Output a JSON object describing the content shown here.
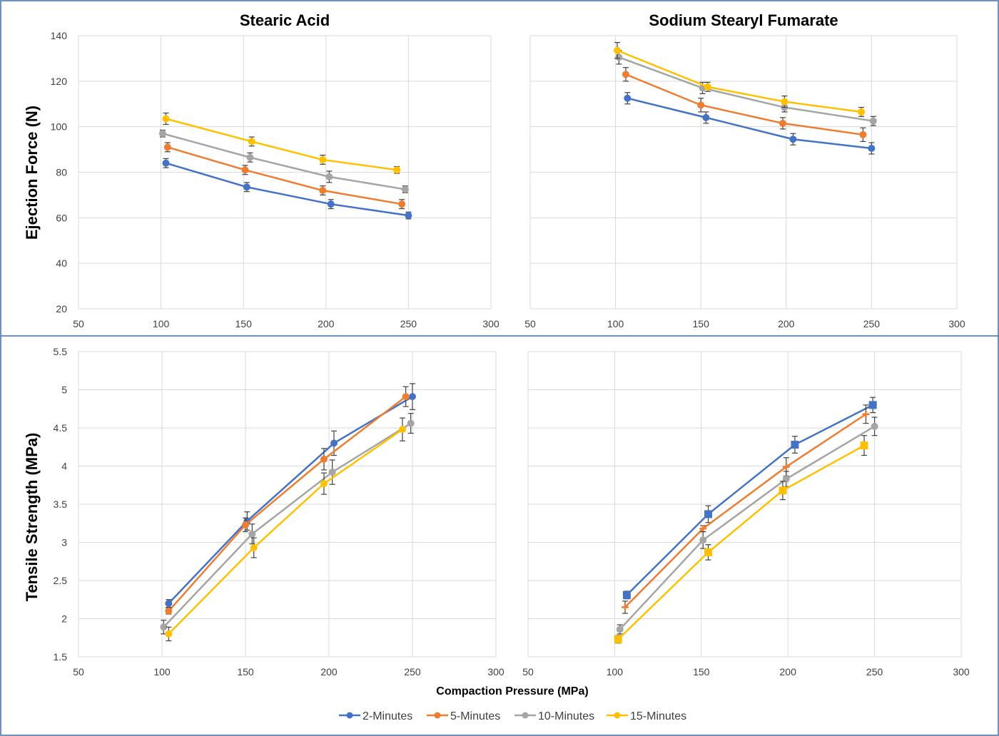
{
  "figure": {
    "y_label_top": "Ejection Force (N)",
    "y_label_bottom": "Tensile Strength (MPa)",
    "x_label": "Compaction Pressure (MPa)"
  },
  "legend": [
    {
      "name": "2-Minutes",
      "color": "#4472c4"
    },
    {
      "name": "5-Minutes",
      "color": "#ed7d31"
    },
    {
      "name": "10-Minutes",
      "color": "#a5a5a5"
    },
    {
      "name": "15-Minutes",
      "color": "#ffc000"
    }
  ],
  "chart_data": [
    {
      "type": "line",
      "title": "Stearic Acid",
      "ylabel": "Ejection Force (N)",
      "xlim": [
        50,
        300
      ],
      "ylim": [
        20,
        140
      ],
      "xticks": [
        50,
        100,
        150,
        200,
        250,
        300
      ],
      "yticks": [
        20,
        40,
        60,
        80,
        100,
        120,
        140
      ],
      "grid": true,
      "series": [
        {
          "name": "2-Minutes",
          "color": "#4472c4",
          "marker": "circle",
          "x": [
            103,
            152,
            203,
            250
          ],
          "y": [
            84,
            73.5,
            66,
            61
          ],
          "err": [
            2,
            2,
            2,
            1.5
          ]
        },
        {
          "name": "5-Minutes",
          "color": "#ed7d31",
          "marker": "circle",
          "x": [
            104,
            151,
            198,
            246
          ],
          "y": [
            91,
            81,
            72,
            66
          ],
          "err": [
            2,
            2,
            2,
            2
          ]
        },
        {
          "name": "10-Minutes",
          "color": "#a5a5a5",
          "marker": "circle",
          "x": [
            101,
            154,
            202,
            248
          ],
          "y": [
            97,
            86.5,
            78,
            72.5
          ],
          "err": [
            1.5,
            2,
            2.5,
            1.5
          ]
        },
        {
          "name": "15-Minutes",
          "color": "#ffc000",
          "marker": "circle",
          "x": [
            103,
            155,
            198,
            243
          ],
          "y": [
            103.5,
            93.5,
            85.5,
            81
          ],
          "err": [
            2.5,
            2,
            2,
            1.5
          ]
        }
      ]
    },
    {
      "type": "line",
      "title": "Sodium Stearyl Fumarate",
      "ylabel": "",
      "xlim": [
        50,
        300
      ],
      "ylim": [
        20,
        140
      ],
      "xticks": [
        50,
        100,
        150,
        200,
        250,
        300
      ],
      "yticks": [
        20,
        40,
        60,
        80,
        100,
        120,
        140
      ],
      "grid": true,
      "series": [
        {
          "name": "2-Minutes",
          "color": "#4472c4",
          "marker": "circle",
          "x": [
            107,
            153,
            204,
            250
          ],
          "y": [
            112.5,
            104,
            94.5,
            90.5
          ],
          "err": [
            2.5,
            2.5,
            2.5,
            2.5
          ]
        },
        {
          "name": "5-Minutes",
          "color": "#ed7d31",
          "marker": "circle",
          "x": [
            106,
            150,
            198,
            245
          ],
          "y": [
            123,
            109.5,
            101.5,
            96.5
          ],
          "err": [
            3,
            3,
            2.5,
            3
          ]
        },
        {
          "name": "10-Minutes",
          "color": "#a5a5a5",
          "marker": "circle",
          "x": [
            102,
            151,
            199,
            251
          ],
          "y": [
            130.5,
            117,
            108.5,
            102.5
          ],
          "err": [
            3,
            2.5,
            2,
            2
          ]
        },
        {
          "name": "15-Minutes",
          "color": "#ffc000",
          "marker": "circle",
          "x": [
            101,
            154,
            199,
            244
          ],
          "y": [
            133.5,
            117.5,
            111,
            106.5
          ],
          "err": [
            3.5,
            2,
            2.5,
            2
          ]
        }
      ]
    },
    {
      "type": "line",
      "title": "",
      "ylabel": "Tensile Strength (MPa)",
      "xlabel": "Compaction Pressure (MPa)",
      "xlim": [
        50,
        300
      ],
      "ylim": [
        1.5,
        5.5
      ],
      "xticks": [
        50,
        100,
        150,
        200,
        250,
        300
      ],
      "yticks": [
        1.5,
        2,
        2.5,
        3,
        3.5,
        4,
        4.5,
        5,
        5.5
      ],
      "grid": true,
      "series": [
        {
          "name": "2-Minutes",
          "color": "#4472c4",
          "marker": "circle",
          "x": [
            104,
            151,
            203,
            250
          ],
          "y": [
            2.2,
            3.28,
            4.3,
            4.91
          ],
          "err": [
            0.05,
            0.12,
            0.16,
            0.17
          ]
        },
        {
          "name": "5-Minutes",
          "color": "#ed7d31",
          "marker": "circle",
          "x": [
            104,
            150,
            197,
            246
          ],
          "y": [
            2.1,
            3.23,
            4.09,
            4.91
          ],
          "err": [
            0.04,
            0.09,
            0.14,
            0.13
          ]
        },
        {
          "name": "10-Minutes",
          "color": "#a5a5a5",
          "marker": "circle",
          "x": [
            101,
            154,
            202,
            249
          ],
          "y": [
            1.89,
            3.11,
            3.92,
            4.56
          ],
          "err": [
            0.09,
            0.13,
            0.16,
            0.13
          ]
        },
        {
          "name": "15-Minutes",
          "color": "#ffc000",
          "marker": "circle",
          "x": [
            104,
            155,
            197,
            244
          ],
          "y": [
            1.8,
            2.93,
            3.77,
            4.48
          ],
          "err": [
            0.09,
            0.13,
            0.14,
            0.15
          ]
        }
      ]
    },
    {
      "type": "line",
      "title": "",
      "ylabel": "",
      "xlim": [
        50,
        300
      ],
      "ylim": [
        1.5,
        5.5
      ],
      "xticks": [
        50,
        100,
        150,
        200,
        250,
        300
      ],
      "yticks": [
        1.5,
        2,
        2.5,
        3,
        3.5,
        4,
        4.5,
        5,
        5.5
      ],
      "grid": true,
      "series": [
        {
          "name": "2-Minutes",
          "color": "#4472c4",
          "marker": "square",
          "x": [
            107,
            154,
            204,
            249
          ],
          "y": [
            2.31,
            3.37,
            4.28,
            4.8
          ],
          "err": [
            0.05,
            0.11,
            0.11,
            0.1
          ]
        },
        {
          "name": "5-Minutes",
          "color": "#ed7d31",
          "marker": "plus",
          "x": [
            106,
            151,
            199,
            245
          ],
          "y": [
            2.15,
            3.18,
            3.99,
            4.68
          ],
          "err": [
            0.08,
            0.04,
            0.12,
            0.12
          ]
        },
        {
          "name": "10-Minutes",
          "color": "#a5a5a5",
          "marker": "circle",
          "x": [
            103,
            151,
            199,
            250
          ],
          "y": [
            1.86,
            3.03,
            3.83,
            4.52
          ],
          "err": [
            0.06,
            0.11,
            0.1,
            0.12
          ]
        },
        {
          "name": "15-Minutes",
          "color": "#ffc000",
          "marker": "square",
          "x": [
            102,
            154,
            197,
            244
          ],
          "y": [
            1.73,
            2.87,
            3.68,
            4.27
          ],
          "err": [
            0.05,
            0.1,
            0.12,
            0.13
          ]
        }
      ]
    }
  ]
}
